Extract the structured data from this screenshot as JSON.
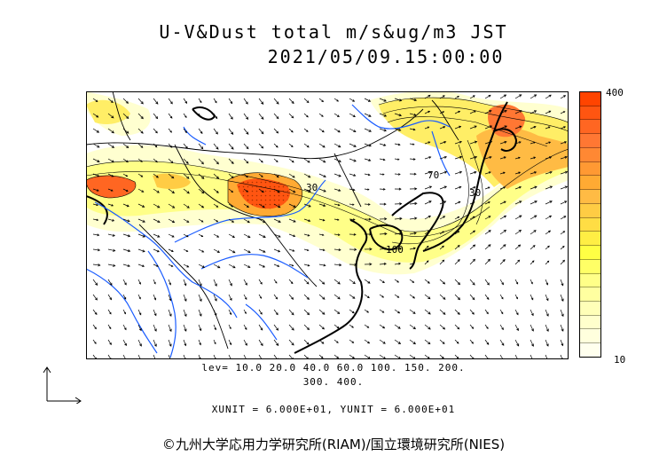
{
  "header": {
    "title": "U-V&Dust total m/s&ug/m3 JST",
    "datetime": "2021/05/09.15:00:00"
  },
  "map": {
    "contour_labels": [
      "70",
      "30",
      "100",
      "30"
    ]
  },
  "colorbar": {
    "max_label": "400",
    "min_label": "10",
    "colors": [
      "#ff4400",
      "#ff5511",
      "#ff6622",
      "#ff7733",
      "#ff8833",
      "#ff9933",
      "#ffaa33",
      "#ffbb44",
      "#ffcc44",
      "#ffdd44",
      "#ffee44",
      "#ffff44",
      "#ffff66",
      "#ffff88",
      "#ffffa0",
      "#ffffb8",
      "#ffffcc",
      "#ffffdd",
      "#ffffee"
    ]
  },
  "footer": {
    "levels_line1": "lev= 10.0 20.0 40.0 60.0 100. 150. 200.",
    "levels_line2": "300. 400.",
    "units": "XUNIT = 6.000E+01, YUNIT = 6.000E+01",
    "copyright": "©九州大学応用力学研究所(RIAM)/国立環境研究所(NIES)"
  }
}
